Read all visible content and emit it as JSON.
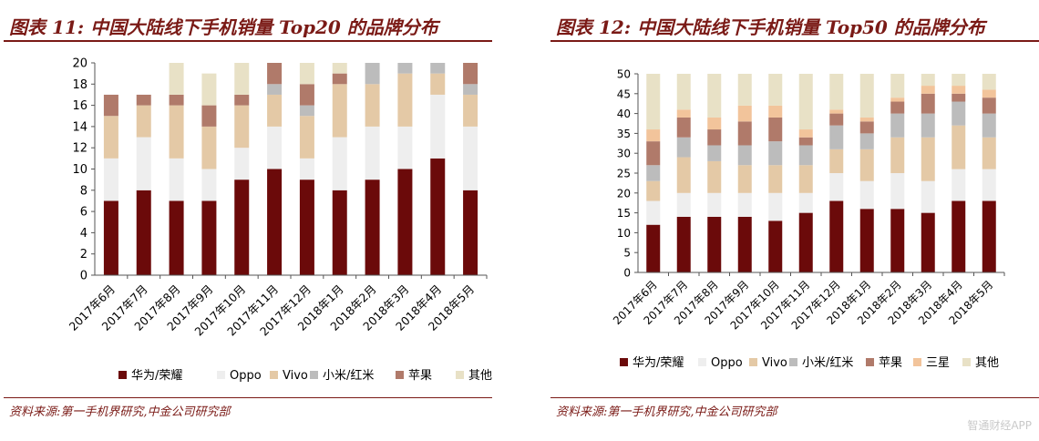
{
  "panels": [
    {
      "title": "图表 11:  中国大陆线下手机销量 Top20 的品牌分布",
      "source": "资料来源:第一手机界研究,中金公司研究部"
    },
    {
      "title": "图表 12:  中国大陆线下手机销量 Top50 的品牌分布",
      "source": "资料来源:第一手机界研究,中金公司研究部"
    }
  ],
  "watermark": "智通财经APP",
  "chart_data": [
    {
      "type": "bar",
      "stacked": true,
      "title": "图表 11:  中国大陆线下手机销量 Top20 的品牌分布",
      "categories": [
        "2017年6月",
        "2017年7月",
        "2017年8月",
        "2017年9月",
        "2017年10月",
        "2017年11月",
        "2017年12月",
        "2018年1月",
        "2018年2月",
        "2018年3月",
        "2018年4月",
        "2018年5月"
      ],
      "ylim": [
        0,
        20
      ],
      "yticks": [
        0,
        2,
        4,
        6,
        8,
        10,
        12,
        14,
        16,
        18,
        20
      ],
      "legend_position": "bottom",
      "series": [
        {
          "name": "华为/荣耀",
          "color": "#6b0a0a",
          "values": [
            7,
            8,
            7,
            7,
            9,
            10,
            9,
            8,
            9,
            10,
            11,
            8
          ]
        },
        {
          "name": "Oppo",
          "color": "#eeeeee",
          "values": [
            4,
            5,
            4,
            3,
            3,
            4,
            2,
            5,
            5,
            4,
            6,
            6
          ]
        },
        {
          "name": "Vivo",
          "color": "#e4c9a6",
          "values": [
            4,
            3,
            5,
            4,
            4,
            3,
            4,
            5,
            4,
            5,
            2,
            3
          ]
        },
        {
          "name": "小米/红米",
          "color": "#bcbcbc",
          "values": [
            0,
            0,
            0,
            0,
            0,
            1,
            1,
            0,
            2,
            1,
            1,
            1
          ]
        },
        {
          "name": "苹果",
          "color": "#b07a6a",
          "values": [
            2,
            1,
            1,
            2,
            1,
            2,
            2,
            1,
            0,
            0,
            0,
            2
          ]
        },
        {
          "name": "其他",
          "color": "#e8e1c6",
          "values": [
            0,
            0,
            3,
            3,
            3,
            0,
            2,
            1,
            0,
            0,
            0,
            0
          ]
        }
      ]
    },
    {
      "type": "bar",
      "stacked": true,
      "title": "图表 12:  中国大陆线下手机销量 Top50 的品牌分布",
      "categories": [
        "2017年6月",
        "2017年7月",
        "2017年8月",
        "2017年9月",
        "2017年10月",
        "2017年11月",
        "2017年12月",
        "2018年1月",
        "2018年2月",
        "2018年3月",
        "2018年4月",
        "2018年5月"
      ],
      "ylim": [
        0,
        50
      ],
      "yticks": [
        0,
        5,
        10,
        15,
        20,
        25,
        30,
        35,
        40,
        45,
        50
      ],
      "legend_position": "bottom",
      "series": [
        {
          "name": "华为/荣耀",
          "color": "#6b0a0a",
          "values": [
            12,
            14,
            14,
            14,
            13,
            15,
            18,
            16,
            16,
            15,
            18,
            18
          ]
        },
        {
          "name": "Oppo",
          "color": "#eeeeee",
          "values": [
            6,
            6,
            6,
            6,
            7,
            5,
            7,
            7,
            9,
            8,
            8,
            8
          ]
        },
        {
          "name": "Vivo",
          "color": "#e4c9a6",
          "values": [
            5,
            9,
            8,
            7,
            7,
            7,
            6,
            8,
            9,
            11,
            11,
            8
          ]
        },
        {
          "name": "小米/红米",
          "color": "#bcbcbc",
          "values": [
            4,
            5,
            4,
            5,
            6,
            5,
            6,
            4,
            6,
            6,
            6,
            6
          ]
        },
        {
          "name": "苹果",
          "color": "#b07a6a",
          "values": [
            6,
            5,
            4,
            6,
            6,
            2,
            3,
            3,
            3,
            5,
            2,
            4
          ]
        },
        {
          "name": "三星",
          "color": "#f2c49b",
          "values": [
            3,
            2,
            3,
            4,
            3,
            2,
            1,
            1,
            1,
            2,
            2,
            2
          ]
        },
        {
          "name": "其他",
          "color": "#e8e1c6",
          "values": [
            14,
            9,
            11,
            8,
            8,
            14,
            9,
            11,
            6,
            3,
            3,
            4
          ]
        }
      ]
    }
  ]
}
